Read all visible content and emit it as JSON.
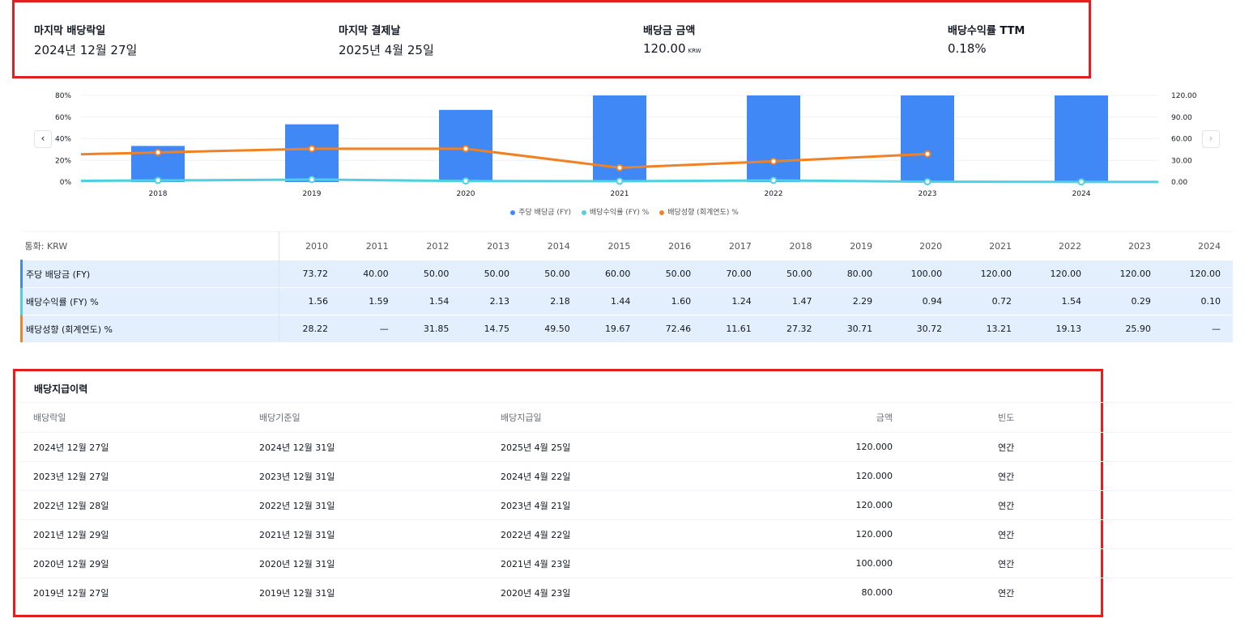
{
  "stats": [
    {
      "label": "마지막 배당락일",
      "value": "2024년 12월 27일",
      "unit": ""
    },
    {
      "label": "마지막 결제날",
      "value": "2025년 4월 25일",
      "unit": ""
    },
    {
      "label": "배당금 금액",
      "value": "120.00",
      "unit": "KRW"
    },
    {
      "label": "배당수익률 TTM",
      "value": "0.18%",
      "unit": ""
    }
  ],
  "chart_data": {
    "type": "bar",
    "categories": [
      "2018",
      "2019",
      "2020",
      "2021",
      "2022",
      "2023",
      "2024"
    ],
    "y_left_ticks": [
      "80%",
      "60%",
      "40%",
      "20%",
      "0%"
    ],
    "y_right_ticks": [
      "120.00",
      "90.00",
      "60.00",
      "30.00",
      "0.00"
    ],
    "ylim_left": [
      0,
      80
    ],
    "ylim_right": [
      0,
      120
    ],
    "series": [
      {
        "name": "주당 배당금 (FY)",
        "type": "bar",
        "axis": "right",
        "color": "#3f88f5",
        "values": [
          50,
          80,
          100,
          120,
          120,
          120,
          120
        ]
      },
      {
        "name": "배당수익률 (FY) %",
        "type": "line",
        "axis": "left",
        "color": "#4fd0e0",
        "values": [
          1.47,
          2.29,
          0.94,
          0.72,
          1.54,
          0.29,
          0.1
        ]
      },
      {
        "name": "배당성향 (회계연도) %",
        "type": "line",
        "axis": "left",
        "color": "#f08124",
        "values": [
          27.32,
          30.71,
          30.72,
          13.21,
          19.13,
          25.9,
          null
        ]
      }
    ]
  },
  "nav": {
    "prev": "‹",
    "next": "›"
  },
  "legend": [
    {
      "label": "주당 배당금 (FY)",
      "color": "#3f88f5"
    },
    {
      "label": "배당수익률 (FY) %",
      "color": "#4fd0e0"
    },
    {
      "label": "배당성향 (회계연도) %",
      "color": "#f08124"
    }
  ],
  "dividend_table": {
    "currency_label": "통화: KRW",
    "years": [
      "2010",
      "2011",
      "2012",
      "2013",
      "2014",
      "2015",
      "2016",
      "2017",
      "2018",
      "2019",
      "2020",
      "2021",
      "2022",
      "2023",
      "2024"
    ],
    "rows": [
      {
        "label": "주당 배당금 (FY)",
        "color": "#3f88f5",
        "values": [
          "73.72",
          "40.00",
          "50.00",
          "50.00",
          "50.00",
          "60.00",
          "50.00",
          "70.00",
          "50.00",
          "80.00",
          "100.00",
          "120.00",
          "120.00",
          "120.00",
          "120.00"
        ]
      },
      {
        "label": "배당수익률 (FY) %",
        "color": "#4fd0e0",
        "values": [
          "1.56",
          "1.59",
          "1.54",
          "2.13",
          "2.18",
          "1.44",
          "1.60",
          "1.24",
          "1.47",
          "2.29",
          "0.94",
          "0.72",
          "1.54",
          "0.29",
          "0.10"
        ]
      },
      {
        "label": "배당성향 (회계연도) %",
        "color": "#f08124",
        "values": [
          "28.22",
          "—",
          "31.85",
          "14.75",
          "49.50",
          "19.67",
          "72.46",
          "11.61",
          "27.32",
          "30.71",
          "30.72",
          "13.21",
          "19.13",
          "25.90",
          "—"
        ]
      }
    ]
  },
  "history": {
    "title": "배당지급이력",
    "headers": [
      "배당락일",
      "배당기준일",
      "배당지급일",
      "금액",
      "빈도"
    ],
    "rows": [
      [
        "2024년 12월 27일",
        "2024년 12월 31일",
        "2025년 4월 25일",
        "120.000",
        "연간"
      ],
      [
        "2023년 12월 27일",
        "2023년 12월 31일",
        "2024년 4월 22일",
        "120.000",
        "연간"
      ],
      [
        "2022년 12월 28일",
        "2022년 12월 31일",
        "2023년 4월 21일",
        "120.000",
        "연간"
      ],
      [
        "2021년 12월 29일",
        "2021년 12월 31일",
        "2022년 4월 22일",
        "120.000",
        "연간"
      ],
      [
        "2020년 12월 29일",
        "2020년 12월 31일",
        "2021년 4월 23일",
        "100.000",
        "연간"
      ],
      [
        "2019년 12월 27일",
        "2019년 12월 31일",
        "2020년 4월 23일",
        "80.000",
        "연간"
      ]
    ]
  }
}
